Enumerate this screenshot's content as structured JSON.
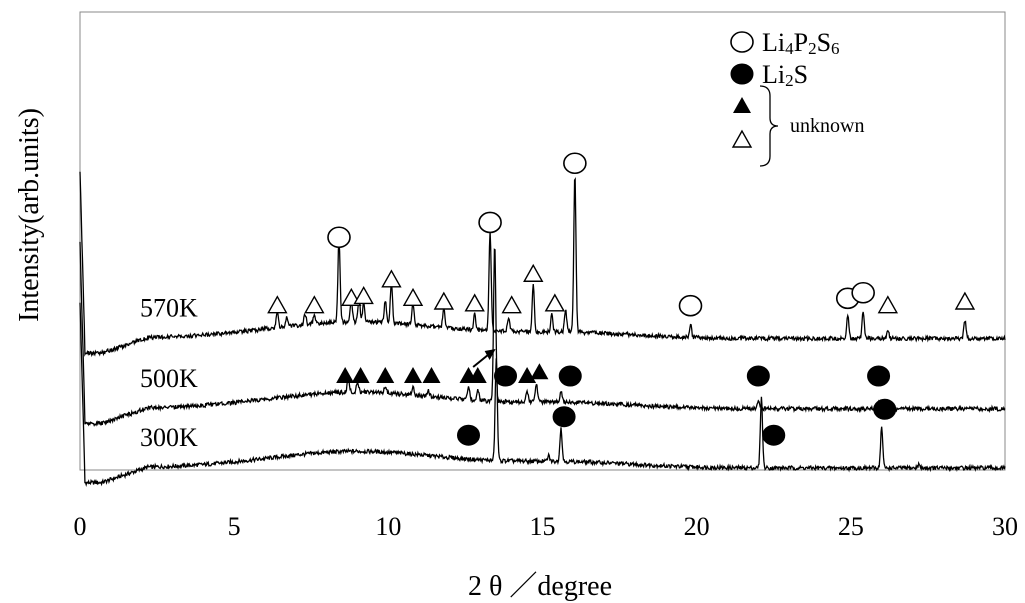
{
  "chart_data": {
    "type": "line",
    "title": "",
    "xlabel": "2 θ ／degree",
    "ylabel": "Intensity(arb.units)",
    "xlim": [
      0,
      30
    ],
    "xticks": [
      0,
      5,
      10,
      15,
      20,
      25,
      30
    ],
    "grid": false,
    "legend_position": "top-right",
    "legend": [
      {
        "symbol": "open-circle",
        "label_main": "Li",
        "label_parts": [
          [
            "Li",
            "4",
            "P",
            "2",
            "S",
            "6"
          ]
        ]
      },
      {
        "symbol": "filled-circle",
        "label_parts": [
          [
            "Li",
            "2",
            "S"
          ]
        ]
      },
      {
        "symbol": "filled-triangle",
        "label_parts": []
      },
      {
        "symbol": "open-triangle",
        "label_parts": []
      }
    ],
    "legend_group_label": "unknown",
    "series": [
      {
        "name": "570K",
        "baseline": 70,
        "peaks": [
          [
            6.4,
            8
          ],
          [
            6.7,
            5
          ],
          [
            7.3,
            6
          ],
          [
            7.6,
            5
          ],
          [
            8.4,
            45
          ],
          [
            8.8,
            12
          ],
          [
            9.05,
            13
          ],
          [
            9.2,
            10
          ],
          [
            9.9,
            12
          ],
          [
            10.1,
            22
          ],
          [
            10.8,
            12
          ],
          [
            11.8,
            10
          ],
          [
            12.8,
            9
          ],
          [
            13.3,
            53
          ],
          [
            13.9,
            8
          ],
          [
            14.7,
            25
          ],
          [
            15.3,
            9
          ],
          [
            15.75,
            12
          ],
          [
            16.05,
            85
          ],
          [
            19.8,
            7
          ],
          [
            24.9,
            12
          ],
          [
            25.4,
            15
          ],
          [
            26.2,
            4
          ],
          [
            28.7,
            10
          ]
        ],
        "markers": [
          {
            "x": 6.4,
            "symbol": "open-triangle"
          },
          {
            "x": 7.6,
            "symbol": "open-triangle"
          },
          {
            "x": 8.4,
            "symbol": "open-circle"
          },
          {
            "x": 8.8,
            "symbol": "open-triangle"
          },
          {
            "x": 9.2,
            "symbol": "open-triangle"
          },
          {
            "x": 10.1,
            "symbol": "open-triangle"
          },
          {
            "x": 10.8,
            "symbol": "open-triangle"
          },
          {
            "x": 11.8,
            "symbol": "open-triangle"
          },
          {
            "x": 12.8,
            "symbol": "open-triangle"
          },
          {
            "x": 13.3,
            "symbol": "open-circle"
          },
          {
            "x": 14.0,
            "symbol": "open-triangle"
          },
          {
            "x": 14.7,
            "symbol": "open-triangle"
          },
          {
            "x": 15.4,
            "symbol": "open-triangle"
          },
          {
            "x": 16.05,
            "symbol": "open-circle"
          },
          {
            "x": 19.8,
            "symbol": "open-circle"
          },
          {
            "x": 24.9,
            "symbol": "open-circle"
          },
          {
            "x": 25.4,
            "symbol": "open-circle"
          },
          {
            "x": 26.2,
            "symbol": "open-triangle"
          },
          {
            "x": 28.7,
            "symbol": "open-triangle"
          }
        ]
      },
      {
        "name": "500K",
        "baseline": 32,
        "peaks": [
          [
            8.7,
            8
          ],
          [
            9.0,
            6
          ],
          [
            9.9,
            4
          ],
          [
            10.8,
            4
          ],
          [
            11.3,
            3
          ],
          [
            12.6,
            7
          ],
          [
            12.9,
            6
          ],
          [
            13.45,
            85
          ],
          [
            14.5,
            6
          ],
          [
            14.8,
            10
          ],
          [
            15.6,
            6
          ],
          [
            22.0,
            5
          ],
          [
            25.9,
            4
          ]
        ],
        "markers": [
          {
            "x": 8.6,
            "symbol": "filled-triangle"
          },
          {
            "x": 9.1,
            "symbol": "filled-triangle"
          },
          {
            "x": 9.9,
            "symbol": "filled-triangle"
          },
          {
            "x": 10.8,
            "symbol": "filled-triangle"
          },
          {
            "x": 11.4,
            "symbol": "filled-triangle"
          },
          {
            "x": 12.6,
            "symbol": "filled-triangle"
          },
          {
            "x": 12.9,
            "symbol": "filled-triangle"
          },
          {
            "x": 13.8,
            "symbol": "filled-circle"
          },
          {
            "x": 14.5,
            "symbol": "filled-triangle"
          },
          {
            "x": 14.9,
            "symbol": "filled-triangle"
          },
          {
            "x": 15.9,
            "symbol": "filled-circle"
          },
          {
            "x": 22.0,
            "symbol": "filled-circle"
          },
          {
            "x": 25.9,
            "symbol": "filled-circle"
          }
        ]
      },
      {
        "name": "300K",
        "baseline": 0,
        "peaks": [
          [
            13.5,
            55
          ],
          [
            15.2,
            3
          ],
          [
            15.6,
            18
          ],
          [
            22.1,
            38
          ],
          [
            26.0,
            22
          ],
          [
            27.2,
            2
          ]
        ],
        "markers": [
          {
            "x": 12.6,
            "symbol": "filled-circle"
          },
          {
            "x": 15.7,
            "symbol": "filled-circle"
          },
          {
            "x": 22.5,
            "symbol": "filled-circle"
          },
          {
            "x": 26.1,
            "symbol": "filled-circle"
          }
        ]
      }
    ]
  }
}
